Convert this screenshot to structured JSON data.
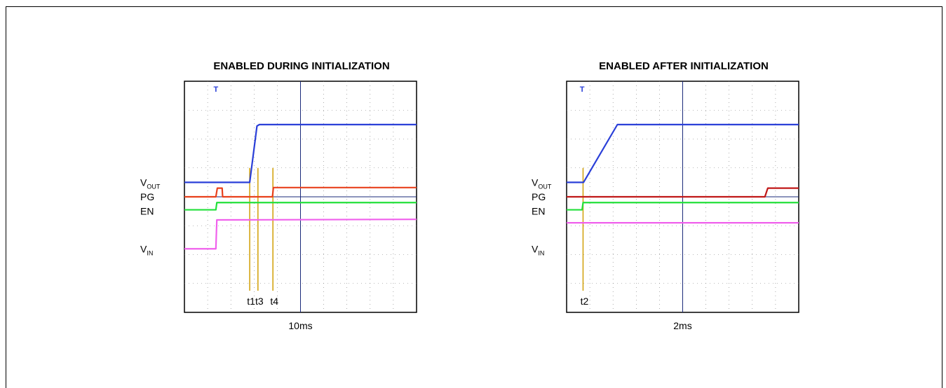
{
  "chart_data": [
    {
      "type": "line",
      "title": "ENABLED DURING INITIALIZATION",
      "xlabel": "10ms",
      "trigger_marker": "T",
      "channels": [
        {
          "name": "VOUT",
          "label_main": "V",
          "label_sub": "OUT",
          "color": "#2a3fd8",
          "points": [
            [
              0,
              4.5
            ],
            [
              1.35,
              4.5
            ],
            [
              1.5,
              6.45
            ],
            [
              1.55,
              6.5
            ],
            [
              4.8,
              6.5
            ]
          ]
        },
        {
          "name": "PG",
          "label_main": "PG",
          "label_sub": "",
          "color": "#e8401c",
          "points": [
            [
              0,
              4.0
            ],
            [
              0.65,
              4.0
            ],
            [
              0.68,
              4.3
            ],
            [
              0.78,
              4.3
            ],
            [
              0.79,
              4.0
            ],
            [
              1.82,
              4.0
            ],
            [
              1.84,
              4.32
            ],
            [
              4.8,
              4.32
            ]
          ]
        },
        {
          "name": "EN",
          "label_main": "EN",
          "label_sub": "",
          "color": "#22e03a",
          "points": [
            [
              0,
              3.55
            ],
            [
              0.65,
              3.55
            ],
            [
              0.67,
              3.8
            ],
            [
              4.8,
              3.8
            ]
          ]
        },
        {
          "name": "VIN",
          "label_main": "V",
          "label_sub": "IN",
          "color": "#f060ec",
          "points": [
            [
              0,
              2.2
            ],
            [
              0.65,
              2.2
            ],
            [
              0.67,
              3.2
            ],
            [
              4.8,
              3.22
            ]
          ]
        }
      ],
      "timing_markers": [
        {
          "label": "t1",
          "x": 1.35
        },
        {
          "label": "t3",
          "x": 1.52
        },
        {
          "label": "t4",
          "x": 1.83
        }
      ]
    },
    {
      "type": "line",
      "title": "ENABLED AFTER INITIALIZATION",
      "xlabel": "2ms",
      "trigger_marker": "T",
      "channels": [
        {
          "name": "VOUT",
          "label_main": "V",
          "label_sub": "OUT",
          "color": "#2a3fd8",
          "points": [
            [
              0,
              4.5
            ],
            [
              0.35,
              4.5
            ],
            [
              1.05,
              6.5
            ],
            [
              4.8,
              6.5
            ]
          ]
        },
        {
          "name": "PG",
          "label_main": "PG",
          "label_sub": "",
          "color": "#c01818",
          "points": [
            [
              0,
              4.0
            ],
            [
              4.1,
              4.0
            ],
            [
              4.16,
              4.3
            ],
            [
              4.8,
              4.3
            ]
          ]
        },
        {
          "name": "EN",
          "label_main": "EN",
          "label_sub": "",
          "color": "#22e03a",
          "points": [
            [
              0,
              3.55
            ],
            [
              0.32,
              3.55
            ],
            [
              0.34,
              3.8
            ],
            [
              4.8,
              3.8
            ]
          ]
        },
        {
          "name": "VIN",
          "label_main": "V",
          "label_sub": "IN",
          "color": "#f060ec",
          "points": [
            [
              0,
              3.1
            ],
            [
              4.8,
              3.1
            ]
          ]
        }
      ],
      "timing_markers": [
        {
          "label": "t2",
          "x": 0.34
        }
      ]
    }
  ]
}
